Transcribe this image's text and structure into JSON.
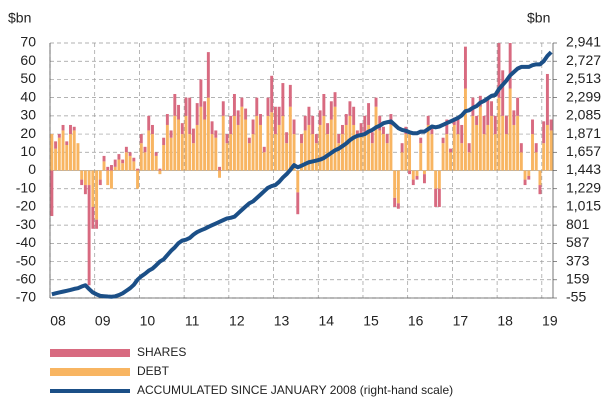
{
  "chart_data": {
    "type": "bar",
    "stacked": true,
    "y_label": "$bn",
    "y2_label": "$bn",
    "categories": [
      "08",
      null,
      null,
      null,
      null,
      null,
      null,
      null,
      null,
      null,
      null,
      null,
      "09",
      null,
      null,
      null,
      null,
      null,
      null,
      null,
      null,
      null,
      null,
      null,
      "10",
      null,
      null,
      null,
      null,
      null,
      null,
      null,
      null,
      null,
      null,
      null,
      "11",
      null,
      null,
      null,
      null,
      null,
      null,
      null,
      null,
      null,
      null,
      null,
      "12",
      null,
      null,
      null,
      null,
      null,
      null,
      null,
      null,
      null,
      null,
      null,
      "13",
      null,
      null,
      null,
      null,
      null,
      null,
      null,
      null,
      null,
      null,
      null,
      "14",
      null,
      null,
      null,
      null,
      null,
      null,
      null,
      null,
      null,
      null,
      null,
      "15",
      null,
      null,
      null,
      null,
      null,
      null,
      null,
      null,
      null,
      null,
      null,
      "16",
      null,
      null,
      null,
      null,
      null,
      null,
      null,
      null,
      null,
      null,
      null,
      "17",
      null,
      null,
      null,
      null,
      null,
      null,
      null,
      null,
      null,
      null,
      null,
      "18",
      null,
      null,
      null,
      null,
      null,
      null,
      null,
      null,
      null,
      null,
      null,
      "19",
      null,
      null
    ],
    "series": [
      {
        "name": "DEBT",
        "color": "#f8b562",
        "type": "bar",
        "values": [
          20,
          12,
          18,
          22,
          14,
          20,
          22,
          15,
          -5,
          -8,
          -8,
          -20,
          -27,
          -5,
          5,
          -8,
          -10,
          2,
          6,
          4,
          10,
          8,
          5,
          -10,
          15,
          10,
          22,
          20,
          8,
          -2,
          14,
          25,
          18,
          30,
          28,
          20,
          30,
          20,
          15,
          25,
          35,
          28,
          40,
          20,
          18,
          -4,
          30,
          15,
          20,
          30,
          25,
          35,
          28,
          15,
          20,
          30,
          25,
          10,
          30,
          32,
          20,
          25,
          30,
          15,
          35,
          20,
          -12,
          15,
          22,
          25,
          20,
          15,
          25,
          30,
          20,
          28,
          35,
          15,
          20,
          25,
          30,
          25,
          18,
          20,
          20,
          25,
          15,
          35,
          22,
          20,
          15,
          25,
          -15,
          -18,
          10,
          20,
          20,
          -5,
          -3,
          15,
          -2,
          25,
          20,
          -10,
          -10,
          15,
          20,
          10,
          25,
          20,
          15,
          45,
          10,
          30,
          25,
          35,
          20,
          25,
          30,
          20,
          40,
          30,
          20,
          45,
          25,
          30,
          10,
          -5,
          -3,
          20,
          10,
          -8,
          15,
          25,
          22
        ]
      },
      {
        "name": "SHARES",
        "color": "#d86a80",
        "type": "bar",
        "values": [
          -25,
          4,
          2,
          3,
          2,
          5,
          2,
          0,
          -3,
          -5,
          -55,
          -12,
          -5,
          -3,
          3,
          2,
          3,
          4,
          3,
          2,
          3,
          2,
          2,
          1,
          5,
          3,
          8,
          5,
          2,
          1,
          4,
          6,
          4,
          12,
          8,
          6,
          10,
          20,
          8,
          12,
          15,
          10,
          25,
          7,
          4,
          2,
          8,
          5,
          10,
          12,
          8,
          5,
          6,
          3,
          8,
          10,
          6,
          3,
          10,
          20,
          15,
          10,
          18,
          6,
          12,
          8,
          -12,
          5,
          8,
          10,
          10,
          5,
          8,
          12,
          6,
          10,
          8,
          5,
          5,
          6,
          8,
          10,
          4,
          6,
          10,
          12,
          6,
          5,
          8,
          4,
          5,
          6,
          -5,
          -3,
          5,
          4,
          -2,
          -3,
          -2,
          3,
          -5,
          5,
          3,
          -10,
          -10,
          3,
          8,
          2,
          4,
          8,
          10,
          23,
          5,
          10,
          5,
          6,
          10,
          15,
          8,
          10,
          30,
          25,
          10,
          25,
          8,
          10,
          5,
          -3,
          -2,
          8,
          5,
          -5,
          12,
          28,
          6
        ]
      },
      {
        "name": "ACCUMULATED SINCE JANUARY 2008 (right-hand scale)",
        "color": "#1b4f87",
        "type": "line",
        "axis": "y2",
        "values": [
          -12,
          0,
          10,
          20,
          30,
          40,
          52,
          60,
          80,
          95,
          50,
          10,
          -12,
          -30,
          -34,
          -38,
          -40,
          -35,
          -20,
          0,
          30,
          60,
          100,
          160,
          200,
          230,
          266,
          290,
          330,
          373,
          400,
          450,
          500,
          540,
          590,
          620,
          630,
          650,
          690,
          720,
          740,
          758,
          780,
          800,
          820,
          840,
          860,
          880,
          887,
          900,
          940,
          980,
          1020,
          1058,
          1080,
          1120,
          1160,
          1200,
          1240,
          1260,
          1272,
          1310,
          1360,
          1400,
          1450,
          1507,
          1480,
          1500,
          1520,
          1540,
          1550,
          1560,
          1571,
          1590,
          1620,
          1650,
          1680,
          1700,
          1730,
          1760,
          1800,
          1830,
          1850,
          1860,
          1871,
          1900,
          1920,
          1950,
          1970,
          1999,
          2010,
          2020,
          1980,
          1940,
          1920,
          1910,
          1892,
          1880,
          1880,
          1900,
          1900,
          1930,
          1960,
          1950,
          1960,
          1980,
          2000,
          2020,
          2040,
          2060,
          2090,
          2140,
          2150,
          2180,
          2200,
          2240,
          2260,
          2290,
          2320,
          2330,
          2400,
          2450,
          2500,
          2560,
          2600,
          2640,
          2660,
          2660,
          2660,
          2680,
          2690,
          2690,
          2727,
          2790,
          2834
        ]
      }
    ],
    "ylim": [
      -70,
      70
    ],
    "yticks": [
      -70,
      -60,
      -50,
      -40,
      -30,
      -20,
      -10,
      0,
      10,
      20,
      30,
      40,
      50,
      60,
      70
    ],
    "y2lim": [
      -55,
      2941
    ],
    "y2ticks": [
      {
        "value": -55,
        "label": "-55"
      },
      159,
      373,
      587,
      801,
      {
        "value": 1015,
        "label": "1,015"
      },
      {
        "value": 1229,
        "label": "1,229"
      },
      {
        "value": 1443,
        "label": "1,443"
      },
      {
        "value": 1657,
        "label": "1,657"
      },
      {
        "value": 1871,
        "label": "1,871"
      },
      {
        "value": 2085,
        "label": "2,085"
      },
      {
        "value": 2299,
        "label": "2,299"
      },
      {
        "value": 2513,
        "label": "2,513"
      },
      {
        "value": 2727,
        "label": "2,727"
      },
      {
        "value": 2941,
        "label": "2,941"
      }
    ],
    "grid": true
  }
}
